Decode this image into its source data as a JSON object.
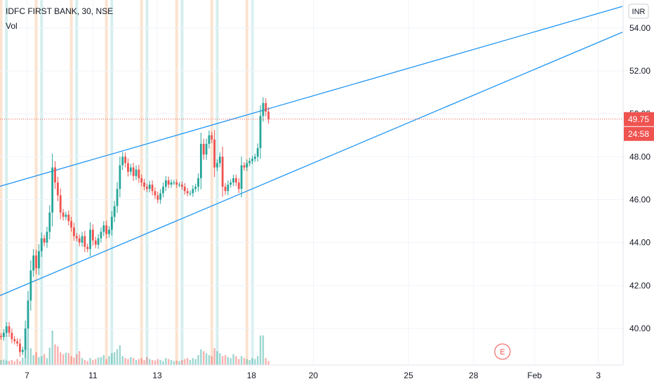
{
  "header": {
    "symbol": "IDFC FIRST BANK, 30, NSE",
    "volume_label": "Vol"
  },
  "axis": {
    "currency": "INR",
    "price_badge": "49.75",
    "countdown_badge": "24:58",
    "earnings_marker": "E"
  },
  "colors": {
    "up": "#26a69a",
    "down": "#ef5350",
    "trendline": "#2196f3",
    "session_up": "#d6efee",
    "session_down": "#fbe3cf"
  },
  "chart_data": {
    "type": "candlestick",
    "ylim": [
      38.3,
      55.3
    ],
    "yticks": [
      40.0,
      42.0,
      44.0,
      46.0,
      48.0,
      50.0,
      52.0,
      54.0
    ],
    "ytick_labels": [
      "40.00",
      "42.00",
      "44.00",
      "46.00",
      "48.00",
      "50.00",
      "52.00",
      "54.00"
    ],
    "x_labels": [
      "7",
      "11",
      "13",
      "18",
      "20",
      "25",
      "28",
      "Feb",
      "3"
    ],
    "last_price": 49.75,
    "closes": [
      39.6,
      39.8,
      40.1,
      39.8,
      39.5,
      39.4,
      39.3,
      38.9,
      39.0,
      40.0,
      41.3,
      42.7,
      43.4,
      42.8,
      43.6,
      44.2,
      44.0,
      44.5,
      45.4,
      47.5,
      46.8,
      46.2,
      45.4,
      45.2,
      45.3,
      45.0,
      44.7,
      44.3,
      44.2,
      44.0,
      44.3,
      43.8,
      43.7,
      44.6,
      44.1,
      43.9,
      44.2,
      44.5,
      44.8,
      44.4,
      44.6,
      45.2,
      45.7,
      46.5,
      47.6,
      48.0,
      47.7,
      47.3,
      47.5,
      47.1,
      47.4,
      47.0,
      46.8,
      46.6,
      46.5,
      46.7,
      46.4,
      46.2,
      46.0,
      46.3,
      46.6,
      46.9,
      46.7,
      46.8,
      46.8,
      46.7,
      46.7,
      46.6,
      46.4,
      46.3,
      46.3,
      46.5,
      46.6,
      47.0,
      48.6,
      48.1,
      48.6,
      49.0,
      48.8,
      47.5,
      47.7,
      48.0,
      46.6,
      46.4,
      46.7,
      46.8,
      47.0,
      46.8,
      46.5,
      47.6,
      47.5,
      47.7,
      47.8,
      47.9,
      48.0,
      48.4,
      49.9,
      50.5,
      50.1,
      49.75
    ],
    "volumes": [
      10,
      11,
      9,
      8,
      10,
      7,
      12,
      8,
      15,
      40,
      55,
      34,
      20,
      26,
      16,
      18,
      22,
      14,
      35,
      70,
      42,
      38,
      26,
      22,
      25,
      24,
      18,
      15,
      22,
      28,
      14,
      10,
      8,
      14,
      10,
      12,
      15,
      16,
      20,
      12,
      18,
      24,
      26,
      32,
      40,
      18,
      14,
      12,
      16,
      14,
      10,
      12,
      14,
      10,
      16,
      12,
      10,
      9,
      12,
      10,
      8,
      14,
      12,
      10,
      8,
      9,
      8,
      10,
      12,
      14,
      10,
      14,
      12,
      20,
      32,
      28,
      24,
      20,
      18,
      34,
      28,
      24,
      18,
      20,
      16,
      14,
      22,
      18,
      12,
      18,
      14,
      12,
      10,
      14,
      12,
      18,
      60,
      60,
      14,
      8
    ],
    "volume_max": 100,
    "bar_spacing": 3.85,
    "x_axis_ticks": [
      {
        "label": "7",
        "bar": 9.6
      },
      {
        "label": "11",
        "bar": 34.0
      },
      {
        "label": "13",
        "bar": 57.8
      },
      {
        "label": "18",
        "bar": 92.7
      },
      {
        "label": "20",
        "bar": 115.6
      },
      {
        "label": "25",
        "bar": 150.8
      },
      {
        "label": "28",
        "bar": 174.9
      },
      {
        "label": "Feb",
        "bar": 197.5
      },
      {
        "label": "3",
        "bar": 221.1
      }
    ],
    "trendlines": [
      {
        "name": "upper",
        "from": [
          -1,
          46.6
        ],
        "to": [
          230,
          55.0
        ]
      },
      {
        "name": "lower",
        "from": [
          -1,
          41.5
        ],
        "to": [
          230,
          53.8
        ]
      }
    ],
    "grid": true
  }
}
